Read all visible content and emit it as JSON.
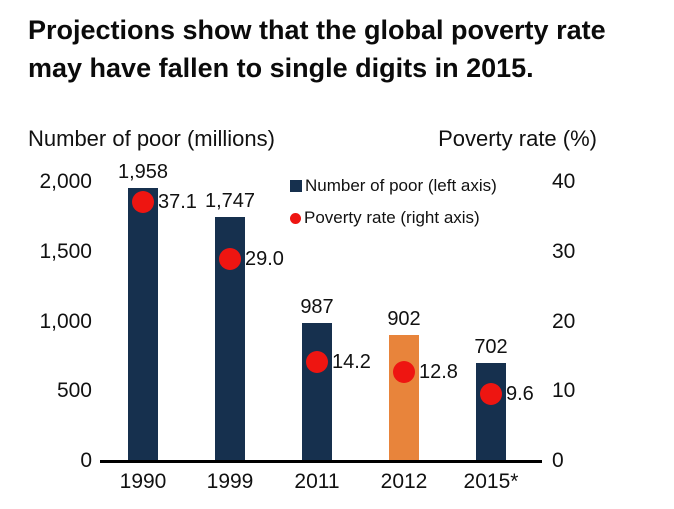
{
  "title": "Projections show that the global poverty rate may have fallen to single digits in 2015.",
  "title_lines": [
    "Projections show that the global poverty rate",
    "may have fallen to single digits in 2015."
  ],
  "legend": [
    {
      "label": "Number of poor (left axis)",
      "marker": "square",
      "color": "#16304e"
    },
    {
      "label": "Poverty rate (right axis)",
      "marker": "circle",
      "color": "#ee1511"
    }
  ],
  "colors": {
    "bar_navy": "#16304e",
    "bar_highlight_orange": "#e8843b",
    "dot_red": "#ee1511",
    "axis_line": "#000000",
    "text": "#111111"
  },
  "chart_data": {
    "type": "bar",
    "subtype": "bar-with-scatter-overlay-dual-axis",
    "categories": [
      "1990",
      "1999",
      "2011",
      "2012",
      "2015*"
    ],
    "series": [
      {
        "name": "Number of poor (left axis)",
        "type": "bar",
        "axis": "left",
        "values": [
          1958,
          1747,
          987,
          902,
          702
        ],
        "labels": [
          "1,958",
          "1,747",
          "987",
          "902",
          "702"
        ],
        "colors": [
          "#16304e",
          "#16304e",
          "#16304e",
          "#e8843b",
          "#16304e"
        ]
      },
      {
        "name": "Poverty rate (right axis)",
        "type": "scatter",
        "axis": "right",
        "values": [
          37.1,
          29.0,
          14.2,
          12.8,
          9.6
        ],
        "labels": [
          "37.1",
          "29.0",
          "14.2",
          "12.8",
          "9.6"
        ],
        "color": "#ee1511"
      }
    ],
    "left_axis": {
      "title": "Number of poor (millions)",
      "ticks": [
        "2,000",
        "1,500",
        "1,000",
        "500",
        "0"
      ],
      "tick_values": [
        2000,
        1500,
        1000,
        500,
        0
      ],
      "range": [
        0,
        2000
      ]
    },
    "right_axis": {
      "title": "Poverty rate (%)",
      "ticks": [
        "40",
        "30",
        "20",
        "10",
        "0"
      ],
      "tick_values": [
        40,
        30,
        20,
        10,
        0
      ],
      "range": [
        0,
        40
      ]
    },
    "grid": false,
    "legend_position": "inside-top-center"
  }
}
